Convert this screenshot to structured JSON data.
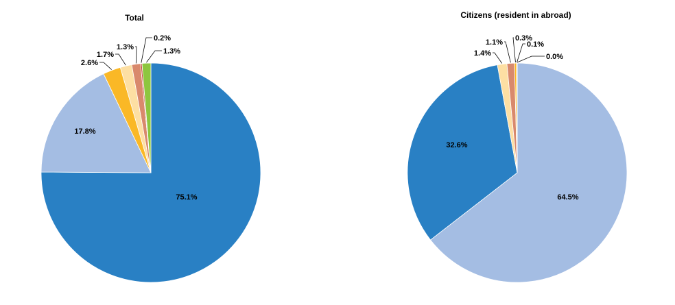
{
  "chart_data": [
    {
      "type": "pie",
      "title": "Total",
      "slices": [
        {
          "value": 75.1,
          "label": "75.1%",
          "color": "#2980C4"
        },
        {
          "value": 17.8,
          "label": "17.8%",
          "color": "#A4BDE3"
        },
        {
          "value": 2.6,
          "label": "2.6%",
          "color": "#FAB826"
        },
        {
          "value": 1.7,
          "label": "1.7%",
          "color": "#FDDFA3"
        },
        {
          "value": 1.3,
          "label": "1.3%",
          "color": "#D9896C"
        },
        {
          "value": 0.2,
          "label": "0.2%",
          "color": "#C0392B"
        },
        {
          "value": 1.3,
          "label": "1.3%",
          "color": "#8DC63F"
        }
      ]
    },
    {
      "type": "pie",
      "title": "Citizens (resident in abroad)",
      "slices": [
        {
          "value": 64.5,
          "label": "64.5%",
          "color": "#A4BDE3"
        },
        {
          "value": 32.6,
          "label": "32.6%",
          "color": "#2980C4"
        },
        {
          "value": 1.4,
          "label": "1.4%",
          "color": "#FDDFA3"
        },
        {
          "value": 1.1,
          "label": "1.1%",
          "color": "#D9896C"
        },
        {
          "value": 0.3,
          "label": "0.3%",
          "color": "#FAB826"
        },
        {
          "value": 0.1,
          "label": "0.1%",
          "color": "#C0392B"
        },
        {
          "value": 0.0,
          "label": "0.0%",
          "color": "#8DC63F"
        }
      ]
    }
  ]
}
